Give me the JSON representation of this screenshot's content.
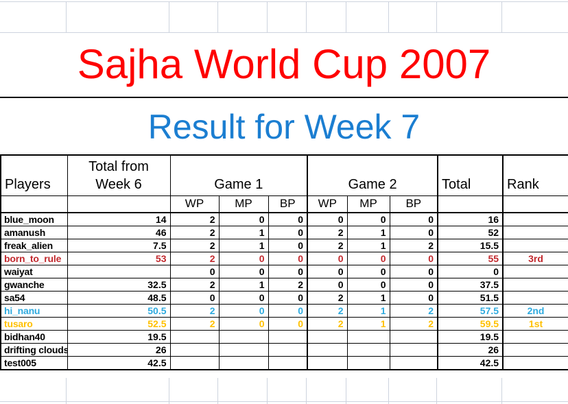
{
  "titles": {
    "main": "Sajha World Cup 2007",
    "subtitle": "Result for Week 7"
  },
  "colors": {
    "main_title": "#FE0000",
    "subtitle": "#1B7ED1",
    "rank_1st": "#FFC000",
    "rank_2nd": "#2EAADF",
    "rank_3rd": "#C1282D",
    "gridline": "#CDD3DE"
  },
  "table": {
    "header": {
      "players": "Players",
      "total_from_line1": "Total from",
      "total_from_line2": "Week 6",
      "game1": "Game 1",
      "game2": "Game 2",
      "total": "Total",
      "rank": "Rank",
      "sub": [
        "WP",
        "MP",
        "BP",
        "WP",
        "MP",
        "BP"
      ]
    },
    "rows": [
      {
        "player": "blue_moon",
        "week6": "14",
        "g1wp": "2",
        "g1mp": "0",
        "g1bp": "0",
        "g2wp": "0",
        "g2mp": "0",
        "g2bp": "0",
        "total": "16",
        "rank": "",
        "highlight": ""
      },
      {
        "player": "amanush",
        "week6": "46",
        "g1wp": "2",
        "g1mp": "1",
        "g1bp": "0",
        "g2wp": "2",
        "g2mp": "1",
        "g2bp": "0",
        "total": "52",
        "rank": "",
        "highlight": ""
      },
      {
        "player": "freak_alien",
        "week6": "7.5",
        "g1wp": "2",
        "g1mp": "1",
        "g1bp": "0",
        "g2wp": "2",
        "g2mp": "1",
        "g2bp": "2",
        "total": "15.5",
        "rank": "",
        "highlight": ""
      },
      {
        "player": "born_to_rule",
        "week6": "53",
        "g1wp": "2",
        "g1mp": "0",
        "g1bp": "0",
        "g2wp": "0",
        "g2mp": "0",
        "g2bp": "0",
        "total": "55",
        "rank": "3rd",
        "highlight": "red"
      },
      {
        "player": "waiyat",
        "week6": "",
        "g1wp": "0",
        "g1mp": "0",
        "g1bp": "0",
        "g2wp": "0",
        "g2mp": "0",
        "g2bp": "0",
        "total": "0",
        "rank": "",
        "highlight": ""
      },
      {
        "player": "gwanche",
        "week6": "32.5",
        "g1wp": "2",
        "g1mp": "1",
        "g1bp": "2",
        "g2wp": "0",
        "g2mp": "0",
        "g2bp": "0",
        "total": "37.5",
        "rank": "",
        "highlight": ""
      },
      {
        "player": "sa54",
        "week6": "48.5",
        "g1wp": "0",
        "g1mp": "0",
        "g1bp": "0",
        "g2wp": "2",
        "g2mp": "1",
        "g2bp": "0",
        "total": "51.5",
        "rank": "",
        "highlight": ""
      },
      {
        "player": "hi_nanu",
        "week6": "50.5",
        "g1wp": "2",
        "g1mp": "0",
        "g1bp": "0",
        "g2wp": "2",
        "g2mp": "1",
        "g2bp": "2",
        "total": "57.5",
        "rank": "2nd",
        "highlight": "cyan"
      },
      {
        "player": "tusaro",
        "week6": "52.5",
        "g1wp": "2",
        "g1mp": "0",
        "g1bp": "0",
        "g2wp": "2",
        "g2mp": "1",
        "g2bp": "2",
        "total": "59.5",
        "rank": "1st",
        "highlight": "gold"
      },
      {
        "player": "bidhan40",
        "week6": "19.5",
        "g1wp": "",
        "g1mp": "",
        "g1bp": "",
        "g2wp": "",
        "g2mp": "",
        "g2bp": "",
        "total": "19.5",
        "rank": "",
        "highlight": ""
      },
      {
        "player": "drifting clouds",
        "week6": "26",
        "g1wp": "",
        "g1mp": "",
        "g1bp": "",
        "g2wp": "",
        "g2mp": "",
        "g2bp": "",
        "total": "26",
        "rank": "",
        "highlight": ""
      },
      {
        "player": "test005",
        "week6": "42.5",
        "g1wp": "",
        "g1mp": "",
        "g1bp": "",
        "g2wp": "",
        "g2mp": "",
        "g2bp": "",
        "total": "42.5",
        "rank": "",
        "highlight": ""
      }
    ]
  }
}
